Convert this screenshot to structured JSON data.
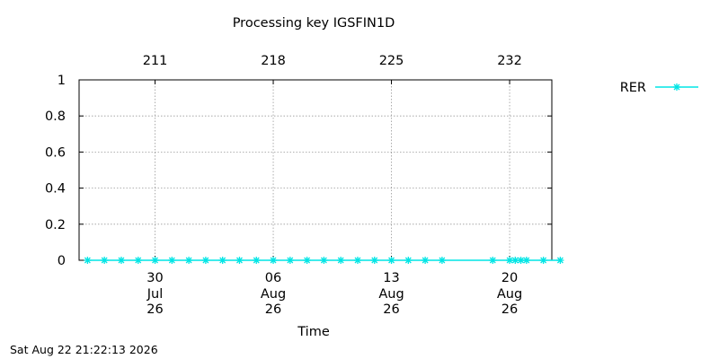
{
  "chart_data": {
    "type": "scatter",
    "title": "Processing key IGSFIN1D",
    "xlabel": "Time",
    "ylabel": "",
    "ylim": [
      0,
      1
    ],
    "y_ticks": [
      "0",
      "0.2",
      "0.4",
      "0.6",
      "0.8",
      "1"
    ],
    "y_tick_values": [
      0,
      0.2,
      0.4,
      0.6,
      0.8,
      1
    ],
    "xlim": [
      "2026-07-25T12:00",
      "2026-08-22T12:00"
    ],
    "x_ticks": [
      {
        "date": "2026-07-30",
        "day": "30",
        "month": "Jul",
        "year": "26"
      },
      {
        "date": "2026-08-06",
        "day": "06",
        "month": "Aug",
        "year": "26"
      },
      {
        "date": "2026-08-13",
        "day": "13",
        "month": "Aug",
        "year": "26"
      },
      {
        "date": "2026-08-20",
        "day": "20",
        "month": "Aug",
        "year": "26"
      }
    ],
    "x2_ticks": [
      {
        "date": "2026-07-30",
        "label": "211"
      },
      {
        "date": "2026-08-06",
        "label": "218"
      },
      {
        "date": "2026-08-13",
        "label": "225"
      },
      {
        "date": "2026-08-20",
        "label": "232"
      }
    ],
    "grid": true,
    "legend": "top-right, outside plot",
    "series": [
      {
        "name": "RER",
        "color": "#00e5e5",
        "marker": "star",
        "points": [
          {
            "x": "2026-07-26",
            "y": 0
          },
          {
            "x": "2026-07-27",
            "y": 0
          },
          {
            "x": "2026-07-28",
            "y": 0
          },
          {
            "x": "2026-07-29",
            "y": 0
          },
          {
            "x": "2026-07-30",
            "y": 0
          },
          {
            "x": "2026-07-31",
            "y": 0
          },
          {
            "x": "2026-08-01",
            "y": 0
          },
          {
            "x": "2026-08-02",
            "y": 0
          },
          {
            "x": "2026-08-03",
            "y": 0
          },
          {
            "x": "2026-08-04",
            "y": 0
          },
          {
            "x": "2026-08-05",
            "y": 0
          },
          {
            "x": "2026-08-06",
            "y": 0
          },
          {
            "x": "2026-08-07",
            "y": 0
          },
          {
            "x": "2026-08-08",
            "y": 0
          },
          {
            "x": "2026-08-09",
            "y": 0
          },
          {
            "x": "2026-08-10",
            "y": 0
          },
          {
            "x": "2026-08-11",
            "y": 0
          },
          {
            "x": "2026-08-12",
            "y": 0
          },
          {
            "x": "2026-08-13",
            "y": 0
          },
          {
            "x": "2026-08-14",
            "y": 0
          },
          {
            "x": "2026-08-15",
            "y": 0
          },
          {
            "x": "2026-08-16",
            "y": 0
          },
          {
            "x": "2026-08-19",
            "y": 0
          },
          {
            "x": "2026-08-20",
            "y": 0
          },
          {
            "x": "2026-08-20T08:00",
            "y": 0
          },
          {
            "x": "2026-08-20T16:00",
            "y": 0
          },
          {
            "x": "2026-08-21",
            "y": 0
          },
          {
            "x": "2026-08-22",
            "y": 0
          },
          {
            "x": "2026-08-23",
            "y": 0
          }
        ]
      }
    ]
  },
  "footer": {
    "timestamp": "Sat Aug 22 21:22:13 2026"
  }
}
